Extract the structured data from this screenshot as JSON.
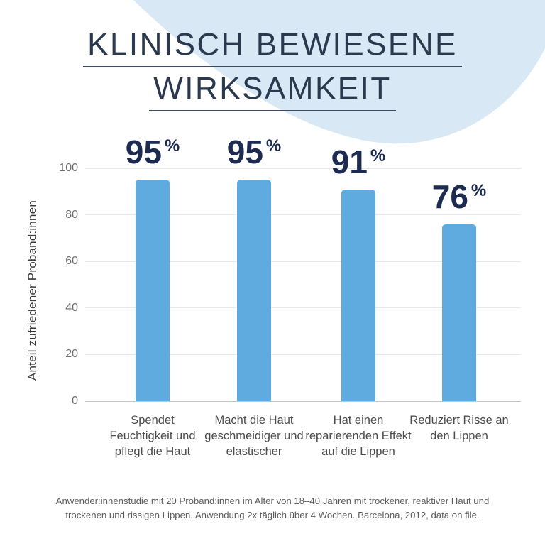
{
  "title": {
    "line1": "KLINISCH BEWIESENE",
    "line2": "WIRKSAMKEIT"
  },
  "chart_data": {
    "type": "bar",
    "title": "KLINISCH BEWIESENE WIRKSAMKEIT",
    "categories": [
      "Spendet Feuchtigkeit und pflegt die Haut",
      "Macht die Haut geschmeidiger und elastischer",
      "Hat einen reparierenden Effekt auf die Lippen",
      "Reduziert Risse an den Lippen"
    ],
    "values": [
      95,
      95,
      91,
      76
    ],
    "value_labels": [
      "95",
      "95",
      "91",
      "76"
    ],
    "value_suffix": "%",
    "ylabel": "Anteil zufriedener Proband:innen",
    "xlabel": "",
    "yticks": [
      0,
      20,
      40,
      60,
      80,
      100
    ],
    "ylim": [
      0,
      100
    ],
    "grid": true,
    "legend": "none",
    "colors": {
      "bar": "#5fabe0",
      "value_label": "#1d2b50",
      "background_blob": "#d9e8f5",
      "gridline": "#e8e8e8",
      "tick_text": "#6f6f6f"
    }
  },
  "footnote": "Anwender:innenstudie mit 20 Proband:innen im Alter von 18–40 Jahren mit trockener, reaktiver Haut und trockenen und rissigen Lippen. Anwendung 2x täglich über 4 Wochen. Barcelona, 2012, data on file."
}
